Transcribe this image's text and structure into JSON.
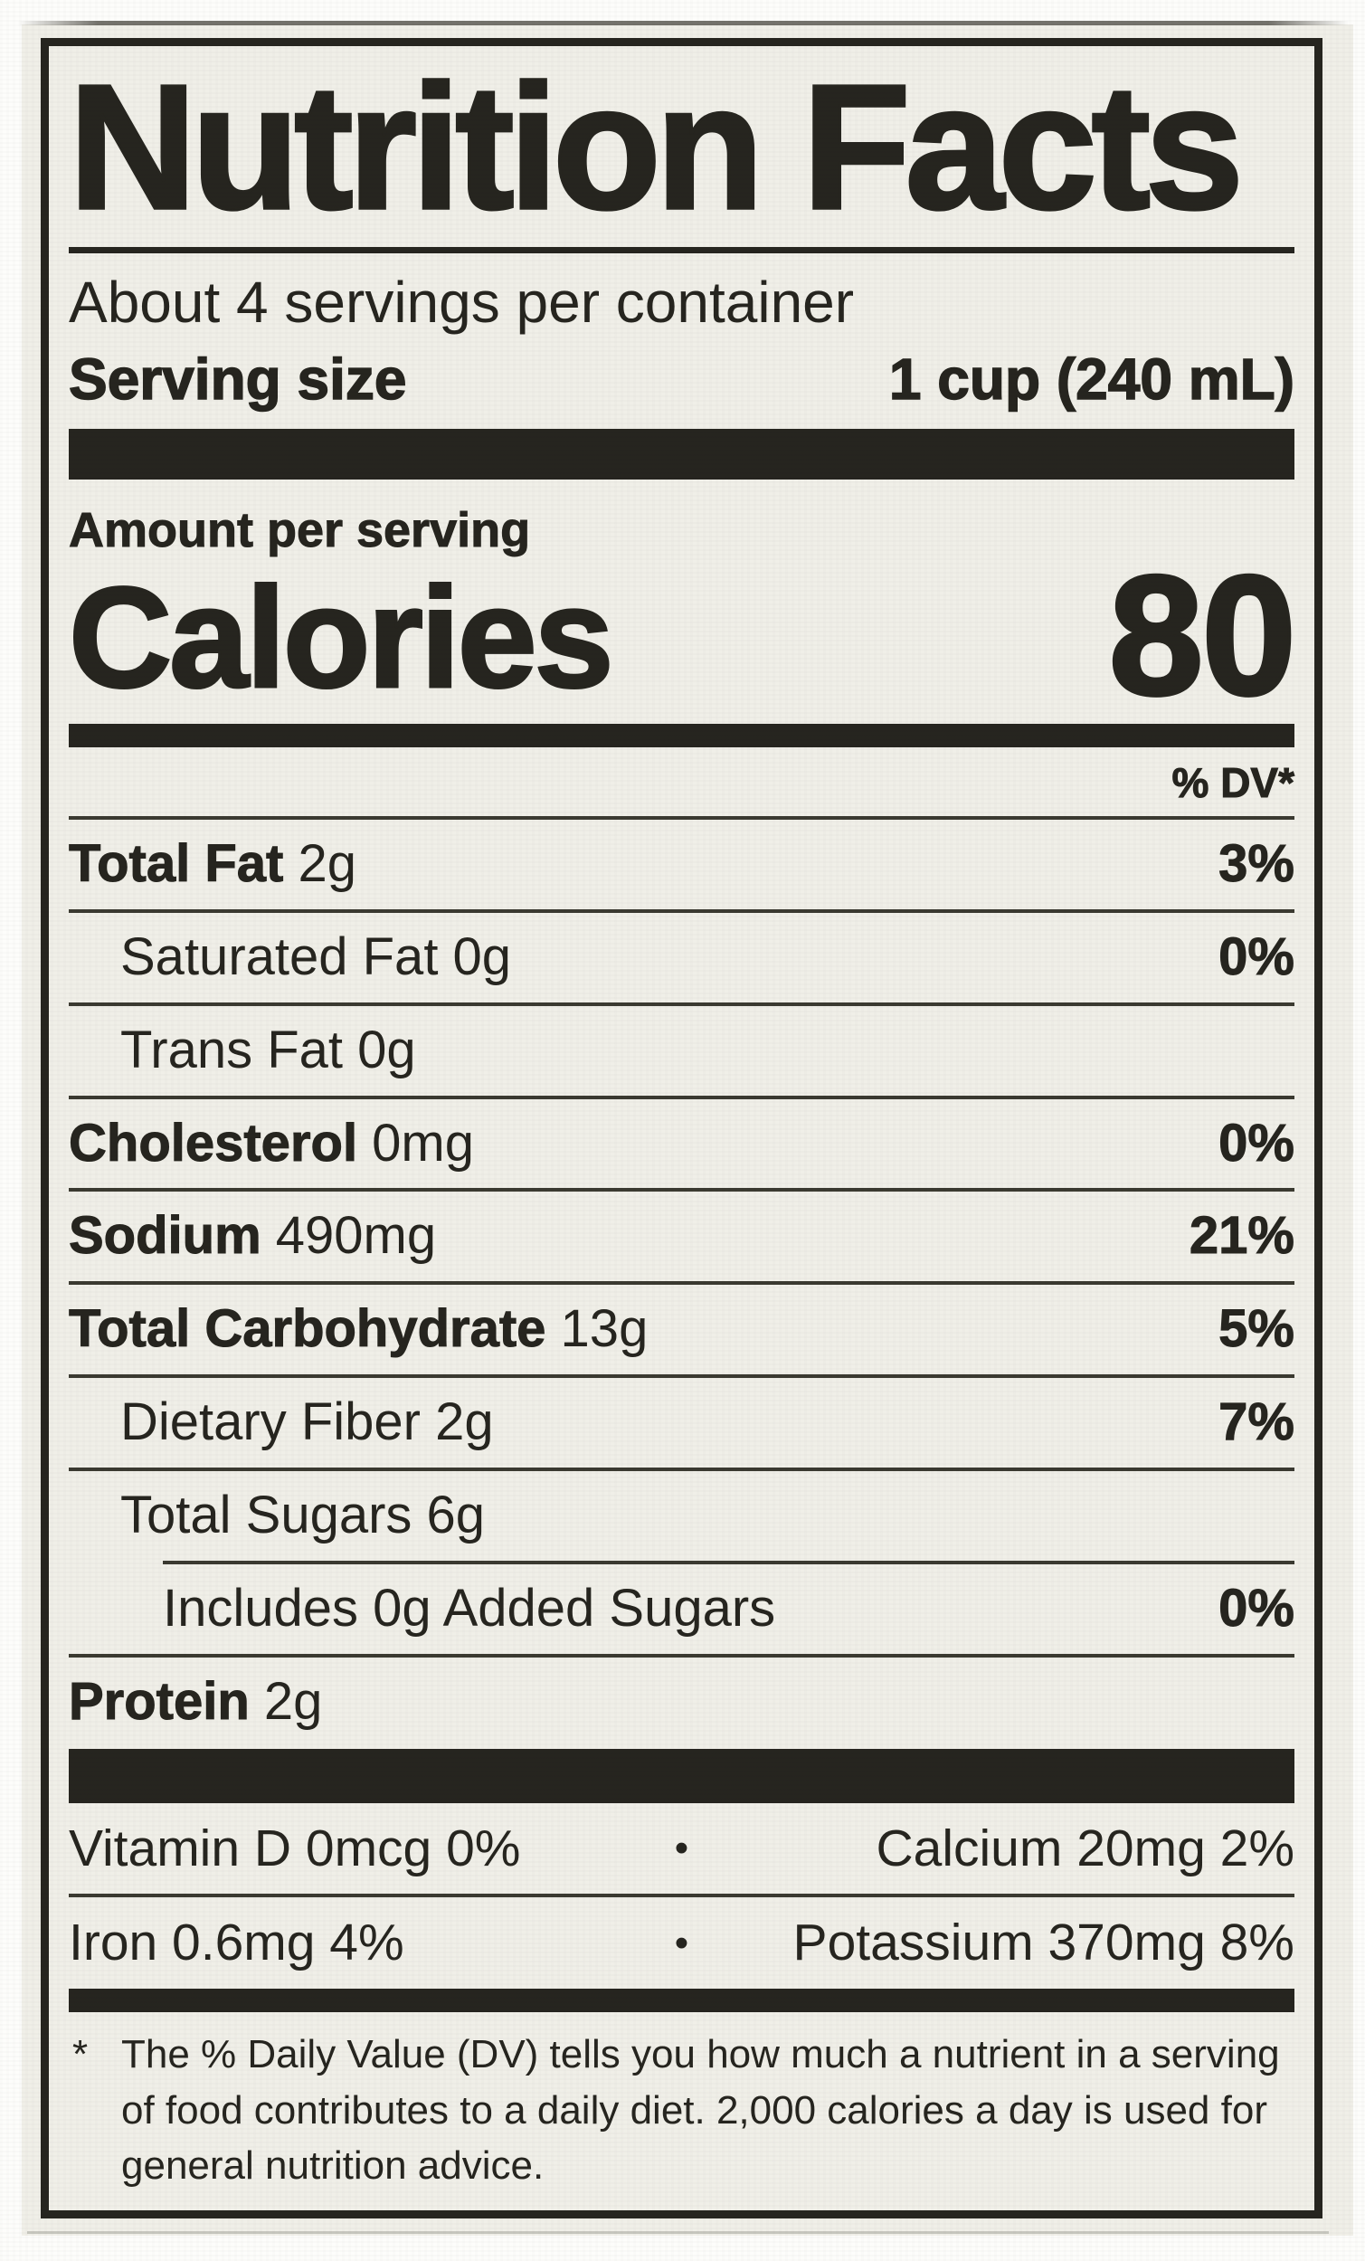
{
  "label": {
    "title": "Nutrition Facts",
    "servings_per_container": "About 4 servings per container",
    "serving_size_label": "Serving size",
    "serving_size_value": "1 cup (240 mL)",
    "amount_per_serving": "Amount per serving",
    "calories_label": "Calories",
    "calories_value": "80",
    "dv_header": "% DV*",
    "nutrients": [
      {
        "name": "Total Fat",
        "amount": "2g",
        "dv": "3%",
        "bold": true,
        "indent": 0
      },
      {
        "name": "Saturated Fat",
        "amount": "0g",
        "dv": "0%",
        "bold": false,
        "indent": 1
      },
      {
        "name": "Trans Fat",
        "amount": "0g",
        "dv": "",
        "bold": false,
        "indent": 1
      },
      {
        "name": "Cholesterol",
        "amount": "0mg",
        "dv": "0%",
        "bold": true,
        "indent": 0
      },
      {
        "name": "Sodium",
        "amount": "490mg",
        "dv": "21%",
        "bold": true,
        "indent": 0
      },
      {
        "name": "Total Carbohydrate",
        "amount": "13g",
        "dv": "5%",
        "bold": true,
        "indent": 0
      },
      {
        "name": "Dietary Fiber",
        "amount": "2g",
        "dv": "7%",
        "bold": false,
        "indent": 1
      },
      {
        "name": "Total Sugars",
        "amount": "6g",
        "dv": "",
        "bold": false,
        "indent": 1
      },
      {
        "name": "Includes 0g Added Sugars",
        "amount": "",
        "dv": "0%",
        "bold": false,
        "indent": 2,
        "sep_indent": true
      },
      {
        "name": "Protein",
        "amount": "2g",
        "dv": "",
        "bold": true,
        "indent": 0
      }
    ],
    "micronutrients": [
      {
        "left": "Vitamin D 0mcg 0%",
        "bullet": "•",
        "right": "Calcium 20mg 2%"
      },
      {
        "left": "Iron 0.6mg 4%",
        "bullet": "•",
        "right": "Potassium 370mg 8%"
      }
    ],
    "footnote_marker": "*",
    "footnote_lines": [
      "The % Daily Value (DV) tells you how much a nutrient in a serving",
      "of food contributes to a daily diet. 2,000 calories a day is used for",
      "general nutrition advice."
    ]
  },
  "colors": {
    "paper": "#f0efe8",
    "ink": "#26251f",
    "thin_rule": "#3b3a31",
    "photo_margin": "#fdfdfb"
  }
}
